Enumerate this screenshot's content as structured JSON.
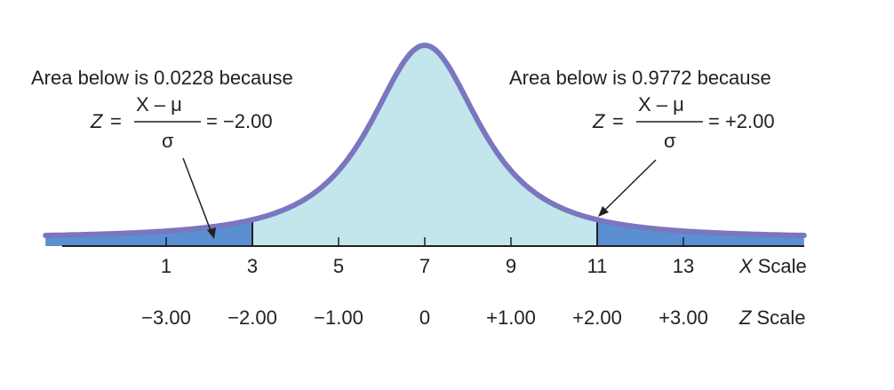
{
  "colors": {
    "curve": "#7a76bf",
    "center_fill": "#c2e6ec",
    "tail_fill": "#5a8fd1",
    "axis": "#231f20",
    "text": "#231f20"
  },
  "distribution": {
    "mean": 7,
    "sd": 2
  },
  "x_scale": {
    "ticks": [
      "1",
      "3",
      "5",
      "7",
      "9",
      "11",
      "13"
    ],
    "label_var": "X",
    "label_word": "Scale"
  },
  "z_scale": {
    "values": [
      "−3.00",
      "−2.00",
      "−1.00",
      "0",
      "+1.00",
      "+2.00",
      "+3.00"
    ],
    "label_var": "Z",
    "label_word": "Scale"
  },
  "shaded_below": 3,
  "shaded_above": 11,
  "annotation_left": {
    "heading": "Area below is 0.0228 because",
    "z_lhs": "Z",
    "eq1": "=",
    "numerator": "X – μ",
    "denominator": "σ",
    "result": "= −2.00"
  },
  "annotation_right": {
    "heading": "Area below is 0.9772 because",
    "z_lhs": "Z",
    "eq1": "=",
    "numerator": "X – μ",
    "denominator": "σ",
    "result": "= +2.00"
  }
}
